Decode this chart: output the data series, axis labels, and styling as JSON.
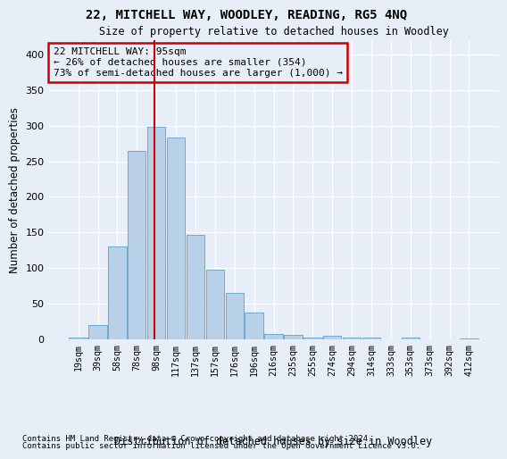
{
  "title": "22, MITCHELL WAY, WOODLEY, READING, RG5 4NQ",
  "subtitle": "Size of property relative to detached houses in Woodley",
  "xlabel_bottom": "Distribution of detached houses by size in Woodley",
  "ylabel": "Number of detached properties",
  "footnote1": "Contains HM Land Registry data © Crown copyright and database right 2024.",
  "footnote2": "Contains public sector information licensed under the Open Government Licence v3.0.",
  "categories": [
    "19sqm",
    "39sqm",
    "58sqm",
    "78sqm",
    "98sqm",
    "117sqm",
    "137sqm",
    "157sqm",
    "176sqm",
    "196sqm",
    "216sqm",
    "235sqm",
    "255sqm",
    "274sqm",
    "294sqm",
    "314sqm",
    "333sqm",
    "353sqm",
    "373sqm",
    "392sqm",
    "412sqm"
  ],
  "values": [
    2,
    20,
    130,
    265,
    298,
    283,
    147,
    98,
    65,
    38,
    8,
    6,
    3,
    5,
    3,
    3,
    0,
    2,
    0,
    0,
    1
  ],
  "bar_color": "#b8d0e8",
  "bar_edge_color": "#6aaad4",
  "background_color": "#e8eef8",
  "grid_color": "#ffffff",
  "vline_x": 3.92,
  "vline_color": "#cc0000",
  "annotation_text": "22 MITCHELL WAY: 95sqm\n← 26% of detached houses are smaller (354)\n73% of semi-detached houses are larger (1,000) →",
  "annotation_box_color": "#cc0000",
  "ylim": [
    0,
    420
  ],
  "yticks": [
    0,
    50,
    100,
    150,
    200,
    250,
    300,
    350,
    400
  ]
}
